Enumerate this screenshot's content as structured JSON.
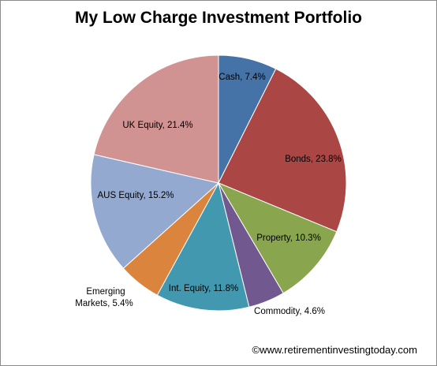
{
  "chart_data": {
    "type": "pie",
    "title": "My Low Charge Investment Portfolio",
    "start_angle_deg": 0,
    "direction": "clockwise",
    "slices": [
      {
        "label": "Cash",
        "value": 7.4,
        "value_label": "7.4%",
        "color": "#4572a7"
      },
      {
        "label": "Bonds",
        "value": 23.8,
        "value_label": "23.8%",
        "color": "#aa4643"
      },
      {
        "label": "Property",
        "value": 10.3,
        "value_label": "10.3%",
        "color": "#89a54e"
      },
      {
        "label": "Commodity",
        "value": 4.6,
        "value_label": "4.6%",
        "color": "#71588f"
      },
      {
        "label": "Int. Equity",
        "value": 11.8,
        "value_label": "11.8%",
        "color": "#4198af"
      },
      {
        "label": "Emerging Markets",
        "value": 5.4,
        "value_label": "5.4%",
        "color": "#db843d"
      },
      {
        "label": "AUS Equity",
        "value": 15.2,
        "value_label": "15.2%",
        "color": "#93a9cf"
      },
      {
        "label": "UK Equity",
        "value": 21.4,
        "value_label": "21.4%",
        "color": "#d19392"
      }
    ]
  },
  "footer": "©www.retirementinvestingtoday.com"
}
